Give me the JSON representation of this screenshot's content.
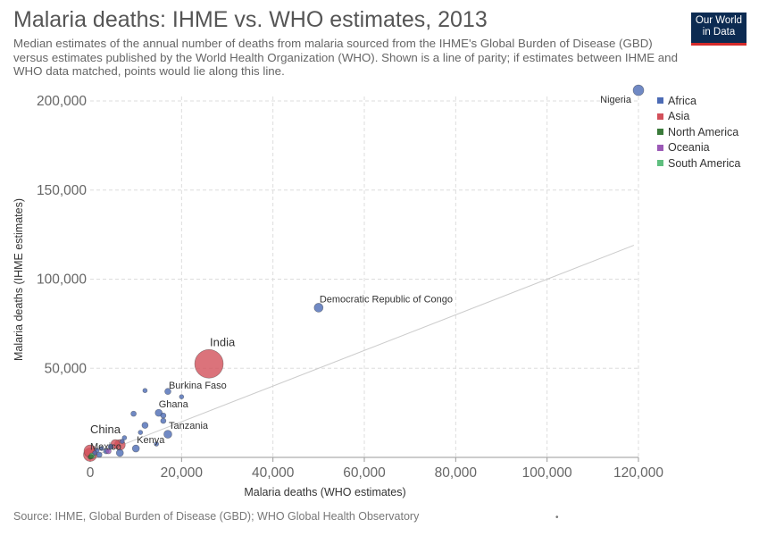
{
  "header": {
    "title": "Malaria deaths: IHME vs. WHO estimates, 2013",
    "subtitle": "Median estimates of the annual number of deaths from malaria sourced from the IHME's Global Burden of Disease (GBD) versus estimates published by the World Health Organization (WHO). Shown is a line of parity; if estimates between IHME and WHO data matched, points would lie along this line."
  },
  "logo": {
    "line1": "Our World",
    "line2": "in Data"
  },
  "footer": {
    "source": "Source: IHME, Global Burden of Disease (GBD); WHO Global Health Observatory",
    "mark": "•"
  },
  "colors": {
    "Africa": "#4c6bb5",
    "Asia": "#d2505a",
    "North America": "#3a7a3a",
    "Oceania": "#9b59b6",
    "South America": "#5fbf7f",
    "parity": "#cccccc",
    "grid": "#dddddd"
  },
  "chart_data": {
    "type": "scatter",
    "title": "Malaria deaths: IHME vs. WHO estimates, 2013",
    "xlabel": "Malaria deaths (WHO estimates)",
    "ylabel": "Malaria deaths (IHME estimates)",
    "xlim": [
      0,
      120000
    ],
    "ylim": [
      0,
      200000
    ],
    "x_ticks": [
      0,
      20000,
      40000,
      60000,
      80000,
      100000,
      120000
    ],
    "x_tick_labels": [
      "0",
      "20,000",
      "40,000",
      "60,000",
      "80,000",
      "100,000",
      "120,000"
    ],
    "y_ticks": [
      50000,
      100000,
      150000,
      200000
    ],
    "y_tick_labels": [
      "50,000",
      "100,000",
      "150,000",
      "200,000"
    ],
    "grid": true,
    "legend_placement": "right",
    "legend": [
      "Africa",
      "Asia",
      "North America",
      "Oceania",
      "South America"
    ],
    "parity_line": {
      "from": 0,
      "to": 119000
    },
    "points": [
      {
        "label": "Nigeria",
        "continent": "Africa",
        "x": 120000,
        "y": 206000,
        "size": 6
      },
      {
        "label": "Democratic Republic of Congo",
        "continent": "Africa",
        "x": 50000,
        "y": 84000,
        "size": 5
      },
      {
        "label": "India",
        "continent": "Asia",
        "x": 26000,
        "y": 52500,
        "size": 16
      },
      {
        "label": "Burkina Faso",
        "continent": "Africa",
        "x": 17000,
        "y": 37000,
        "size": 3.5
      },
      {
        "label": "Ghana",
        "continent": "Africa",
        "x": 15000,
        "y": 25000,
        "size": 4
      },
      {
        "label": "Tanzania",
        "continent": "Africa",
        "x": 17000,
        "y": 13000,
        "size": 4.5
      },
      {
        "label": "Kenya",
        "continent": "Africa",
        "x": 10000,
        "y": 5000,
        "size": 4
      },
      {
        "label": "China",
        "continent": "Asia",
        "x": 0,
        "y": 3500,
        "size": 7
      },
      {
        "label": "Mexico",
        "continent": "North America",
        "x": 0,
        "y": 200,
        "size": 2.5
      },
      {
        "label": "",
        "continent": "Africa",
        "x": 12000,
        "y": 37500,
        "size": 2.5
      },
      {
        "label": "",
        "continent": "Africa",
        "x": 20000,
        "y": 34000,
        "size": 2.5
      },
      {
        "label": "",
        "continent": "Africa",
        "x": 9500,
        "y": 24500,
        "size": 3
      },
      {
        "label": "",
        "continent": "Africa",
        "x": 16000,
        "y": 23500,
        "size": 3
      },
      {
        "label": "",
        "continent": "Africa",
        "x": 16000,
        "y": 20500,
        "size": 3
      },
      {
        "label": "",
        "continent": "Africa",
        "x": 12000,
        "y": 18000,
        "size": 3.5
      },
      {
        "label": "",
        "continent": "Africa",
        "x": 11000,
        "y": 14000,
        "size": 2.5
      },
      {
        "label": "",
        "continent": "Africa",
        "x": 14500,
        "y": 7500,
        "size": 2.5
      },
      {
        "label": "",
        "continent": "Africa",
        "x": 7500,
        "y": 11000,
        "size": 2.5
      },
      {
        "label": "",
        "continent": "Africa",
        "x": 7000,
        "y": 9000,
        "size": 2.5
      },
      {
        "label": "",
        "continent": "Africa",
        "x": 6500,
        "y": 2500,
        "size": 4
      },
      {
        "label": "",
        "continent": "Africa",
        "x": 4500,
        "y": 6000,
        "size": 3
      },
      {
        "label": "",
        "continent": "Africa",
        "x": 3500,
        "y": 3500,
        "size": 3
      },
      {
        "label": "",
        "continent": "Africa",
        "x": 2500,
        "y": 5000,
        "size": 2.5
      },
      {
        "label": "",
        "continent": "Africa",
        "x": 2000,
        "y": 1500,
        "size": 3
      },
      {
        "label": "",
        "continent": "Africa",
        "x": 1500,
        "y": 4000,
        "size": 2.5
      },
      {
        "label": "",
        "continent": "Africa",
        "x": 1000,
        "y": 2500,
        "size": 2.5
      },
      {
        "label": "",
        "continent": "Asia",
        "x": 6500,
        "y": 7000,
        "size": 6
      },
      {
        "label": "",
        "continent": "Asia",
        "x": 5500,
        "y": 7500,
        "size": 5
      },
      {
        "label": "",
        "continent": "Asia",
        "x": 0,
        "y": 1500,
        "size": 7.5
      },
      {
        "label": "",
        "continent": "Oceania",
        "x": 4000,
        "y": 3500,
        "size": 3
      },
      {
        "label": "",
        "continent": "South America",
        "x": 500,
        "y": 800,
        "size": 3
      },
      {
        "label": "",
        "continent": "South America",
        "x": 300,
        "y": 1200,
        "size": 2.5
      },
      {
        "label": "",
        "continent": "North America",
        "x": 200,
        "y": 400,
        "size": 2.5
      }
    ]
  }
}
